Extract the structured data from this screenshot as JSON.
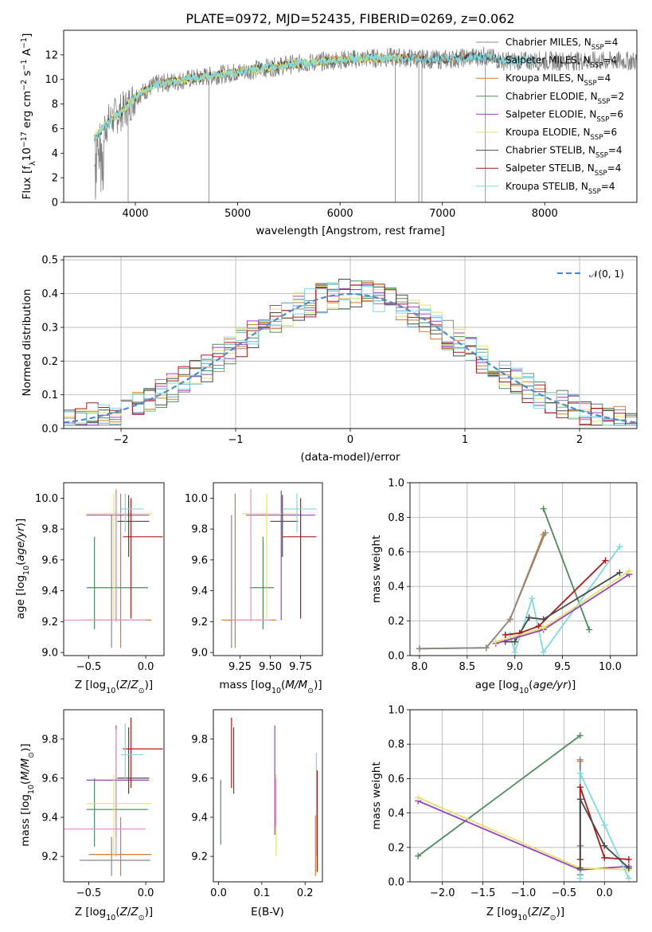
{
  "title": "PLATE=0972, MJD=52435, FIBERID=0269, z=0.062",
  "colors": {
    "Chabrier MILES": "#888888",
    "Salpeter MILES": "#5ab0c8",
    "Kroupa MILES": "#d97a2b",
    "Chabrier ELODIE": "#4f8a5b",
    "Salpeter ELODIE": "#9b40c0",
    "Kroupa ELODIE": "#dfe46a",
    "Chabrier STELIB": "#4a4a4a",
    "Salpeter STELIB": "#b01818",
    "Kroupa STELIB": "#80d8e0",
    "data": "#808080",
    "pink": "#e890c8",
    "normal": "#4f8ad0"
  },
  "chart_data": [
    {
      "type": "line",
      "name": "spectrum",
      "xlabel": "wavelength [Angstrom, rest frame]",
      "ylabel": "Flux [f",
      "xlim": [
        3300,
        8900
      ],
      "ylim": [
        0,
        14
      ],
      "xticks": [
        "4000",
        "5000",
        "6000",
        "7000",
        "8000"
      ],
      "yticks": [
        "0",
        "2",
        "4",
        "6",
        "8",
        "10",
        "12"
      ],
      "legend": [
        "Chabrier MILES, N",
        "Salpeter MILES, N",
        "Kroupa MILES, N",
        "Chabrier ELODIE, N",
        "Salpeter ELODIE, N",
        "Kroupa ELODIE, N",
        "Chabrier STELIB, N",
        "Salpeter STELIB, N",
        "Kroupa STELIB, N"
      ],
      "legend_nssp": [
        "4",
        "4",
        "4",
        "2",
        "6",
        "6",
        "4",
        "4",
        "4"
      ],
      "continuum": [
        [
          3600,
          5.2
        ],
        [
          3700,
          6.2
        ],
        [
          3800,
          7.0
        ],
        [
          3900,
          7.6
        ],
        [
          4000,
          8.6
        ],
        [
          4200,
          9.6
        ],
        [
          4500,
          10.0
        ],
        [
          5000,
          10.6
        ],
        [
          5500,
          11.2
        ],
        [
          6000,
          11.6
        ],
        [
          6500,
          11.8
        ],
        [
          7000,
          11.6
        ],
        [
          7400,
          11.9
        ],
        [
          7600,
          11.5
        ]
      ],
      "dips": [
        [
          4720,
          0
        ],
        [
          3930,
          0
        ],
        [
          3610,
          0.2
        ],
        [
          6540,
          0
        ],
        [
          6800,
          0
        ],
        [
          6770,
          0
        ],
        [
          7420,
          0
        ]
      ]
    },
    {
      "type": "line",
      "name": "residuals",
      "xlabel": "(data-model)/error",
      "ylabel": "Normed distribution",
      "xlim": [
        -2.5,
        2.5
      ],
      "ylim": [
        0,
        0.51
      ],
      "xticks": [
        "−2",
        "−1",
        "0",
        "1",
        "2"
      ],
      "yticks": [
        "0.0",
        "0.1",
        "0.2",
        "0.3",
        "0.4",
        "0.5"
      ],
      "legend": "𝒩(0, 1)"
    },
    {
      "type": "scatter",
      "name": "age-vs-Z",
      "xlabel": "Z [log",
      "ylabel": "age  [log",
      "xlim": [
        -0.72,
        0.16
      ],
      "ylim": [
        8.98,
        10.1
      ],
      "xticks": [
        "−0.5",
        "0.0"
      ],
      "yticks": [
        "9.0",
        "9.2",
        "9.4",
        "9.6",
        "9.8",
        "10.0"
      ]
    },
    {
      "type": "scatter",
      "name": "age-vs-mass",
      "xlabel": "mass [log",
      "ylabel": "",
      "xlim": [
        9.03,
        9.93
      ],
      "ylim": [
        8.98,
        10.1
      ],
      "xticks": [
        "9.25",
        "9.50",
        "9.75"
      ],
      "yticks": [
        "9.0",
        "9.2",
        "9.4",
        "9.6",
        "9.8",
        "10.0"
      ]
    },
    {
      "type": "line",
      "name": "massweight-vs-age",
      "xlabel": "age  [log",
      "ylabel": "mass weight",
      "xlim": [
        7.9,
        10.28
      ],
      "ylim": [
        0,
        1
      ],
      "xticks": [
        "8.0",
        "8.5",
        "9.0",
        "9.5",
        "10.0"
      ],
      "yticks": [
        "0.0",
        "0.2",
        "0.4",
        "0.6",
        "0.8",
        "1.0"
      ],
      "series": [
        {
          "key": "Kroupa MILES",
          "x": [
            8.0,
            8.7,
            8.95,
            9.3
          ],
          "y": [
            0.04,
            0.045,
            0.21,
            0.7
          ]
        },
        {
          "key": "Chabrier MILES",
          "x": [
            8.0,
            8.7,
            8.95,
            9.32
          ],
          "y": [
            0.04,
            0.045,
            0.21,
            0.71
          ]
        },
        {
          "key": "Chabrier ELODIE",
          "x": [
            9.3,
            9.78
          ],
          "y": [
            0.85,
            0.15
          ]
        },
        {
          "key": "Kroupa STELIB",
          "x": [
            8.95,
            9.0,
            9.18,
            9.3,
            10.1
          ],
          "y": [
            0.12,
            0.02,
            0.33,
            0.02,
            0.63
          ]
        },
        {
          "key": "Salpeter STELIB",
          "x": [
            8.9,
            9.05,
            9.25,
            9.95
          ],
          "y": [
            0.12,
            0.13,
            0.17,
            0.55
          ]
        },
        {
          "key": "Chabrier STELIB",
          "x": [
            8.9,
            9.0,
            9.15,
            9.3,
            10.1
          ],
          "y": [
            0.08,
            0.08,
            0.22,
            0.21,
            0.48
          ]
        },
        {
          "key": "Salpeter ELODIE",
          "x": [
            8.8,
            9.3,
            10.2
          ],
          "y": [
            0.07,
            0.15,
            0.47
          ]
        },
        {
          "key": "Kroupa ELODIE",
          "x": [
            8.8,
            9.3,
            10.2
          ],
          "y": [
            0.08,
            0.16,
            0.49
          ]
        }
      ]
    },
    {
      "type": "scatter",
      "name": "mass-vs-Z",
      "xlabel": "Z [log",
      "ylabel": "mass [log",
      "xlim": [
        -0.72,
        0.16
      ],
      "ylim": [
        9.07,
        9.95
      ],
      "xticks": [
        "−0.5",
        "0.0"
      ],
      "yticks": [
        "9.2",
        "9.4",
        "9.6",
        "9.8"
      ]
    },
    {
      "type": "scatter",
      "name": "mass-vs-EBV",
      "xlabel": "E(B-V)",
      "ylabel": "",
      "xlim": [
        -0.012,
        0.24
      ],
      "ylim": [
        9.07,
        9.95
      ],
      "xticks": [
        "0.0",
        "0.1",
        "0.2"
      ],
      "yticks": [
        "9.2",
        "9.4",
        "9.6",
        "9.8"
      ],
      "bars": [
        {
          "key": "Chabrier ELODIE",
          "x": 0.005,
          "y": [
            9.26,
            9.59
          ]
        },
        {
          "key": "Salpeter STELIB",
          "x": 0.03,
          "y": [
            9.55,
            9.91
          ]
        },
        {
          "key": "Chabrier STELIB",
          "x": 0.035,
          "y": [
            9.52,
            9.86
          ]
        },
        {
          "key": "Salpeter ELODIE",
          "x": 0.13,
          "y": [
            9.31,
            9.87
          ]
        },
        {
          "key": "Kroupa ELODIE",
          "x": 0.133,
          "y": [
            9.2,
            9.62
          ]
        },
        {
          "key": "pink",
          "x": 0.132,
          "y": [
            9.35,
            9.6
          ]
        },
        {
          "key": "Kroupa MILES",
          "x": 0.224,
          "y": [
            9.1,
            9.41
          ]
        },
        {
          "key": "Kroupa STELIB",
          "x": 0.226,
          "y": [
            9.2,
            9.73
          ]
        },
        {
          "key": "Salpeter STELIB",
          "x": 0.228,
          "y": [
            9.12,
            9.64
          ]
        }
      ]
    },
    {
      "type": "line",
      "name": "massweight-vs-Z",
      "xlabel": "Z [log",
      "ylabel": "mass weight",
      "xlim": [
        -2.4,
        0.4
      ],
      "ylim": [
        0,
        1
      ],
      "xticks": [
        "−2.0",
        "−1.5",
        "−1.0",
        "−0.5",
        "0.0"
      ],
      "yticks": [
        "0.0",
        "0.2",
        "0.4",
        "0.6",
        "0.8",
        "1.0"
      ],
      "series": [
        {
          "key": "Chabrier ELODIE",
          "x": [
            -2.3,
            -0.3
          ],
          "y": [
            0.15,
            0.85
          ]
        },
        {
          "key": "Salpeter ELODIE",
          "x": [
            -2.3,
            -0.3,
            0.3
          ],
          "y": [
            0.47,
            0.07,
            0.09
          ]
        },
        {
          "key": "Kroupa ELODIE",
          "x": [
            -2.3,
            -0.3,
            0.3
          ],
          "y": [
            0.49,
            0.08,
            0.07
          ]
        },
        {
          "key": "Kroupa MILES",
          "x": [
            -0.3,
            -0.3,
            -0.3
          ],
          "y": [
            0.04,
            0.7,
            0.21
          ]
        },
        {
          "key": "Chabrier MILES",
          "x": [
            -0.3,
            -0.3,
            -0.3
          ],
          "y": [
            0.04,
            0.71,
            0.21
          ]
        },
        {
          "key": "Kroupa STELIB",
          "x": [
            -0.3,
            -0.3,
            0.0,
            0.3
          ],
          "y": [
            0.02,
            0.63,
            0.33,
            0.02
          ]
        },
        {
          "key": "Salpeter STELIB",
          "x": [
            -0.3,
            -0.3,
            0.0,
            0.3
          ],
          "y": [
            0.13,
            0.55,
            0.14,
            0.13
          ]
        },
        {
          "key": "Chabrier STELIB",
          "x": [
            -0.3,
            -0.3,
            0.0,
            0.3
          ],
          "y": [
            0.08,
            0.48,
            0.21,
            0.08
          ]
        }
      ]
    }
  ]
}
